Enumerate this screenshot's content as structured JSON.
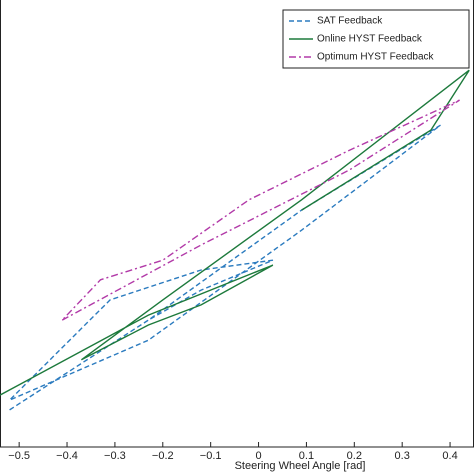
{
  "chart_data": {
    "type": "line",
    "x_label": "Steering Wheel Angle [rad]",
    "xlim": [
      -0.54,
      0.45
    ],
    "ylim": [
      0,
      100
    ],
    "xticks": [
      {
        "value": -0.5,
        "label": "−0.5"
      },
      {
        "value": -0.4,
        "label": "−0.4"
      },
      {
        "value": -0.3,
        "label": "−0.3"
      },
      {
        "value": -0.2,
        "label": "−0.2"
      },
      {
        "value": -0.1,
        "label": "−0.1"
      },
      0,
      0.1,
      0.2,
      0.3,
      0.4
    ],
    "legend": "upper right",
    "series": [
      {
        "name": "SAT Feedback",
        "color": "#2b7bbf",
        "dash": "5,3",
        "x": [
          -0.52,
          -0.23,
          0.09,
          0.38,
          0.09,
          -0.23,
          -0.52,
          -0.31,
          -0.12,
          0.03,
          -0.12,
          -0.23
        ],
        "values": [
          8.3,
          28.4,
          53,
          72,
          48.5,
          23.9,
          10.5,
          32.9,
          39.6,
          41.8,
          35.1,
          28.4
        ]
      },
      {
        "name": "Online HYST Feedback",
        "color": "#1d7a3c",
        "dash": "none",
        "x": [
          -0.54,
          -0.23,
          0.03,
          -0.12,
          -0.23,
          -0.37,
          -0.2,
          0.09,
          0.44,
          0.36,
          0.09
        ],
        "values": [
          11.6,
          29.5,
          40.7,
          31.8,
          27.3,
          19.5,
          32.9,
          55.3,
          84.3,
          70.9,
          53
        ]
      },
      {
        "name": "Optimum HYST Feedback",
        "color": "#b23aa8",
        "dash": "7,3,2,3",
        "x": [
          -0.41,
          -0.12,
          0.19,
          0.42,
          0.19,
          -0.02,
          -0.2,
          -0.33,
          -0.41
        ],
        "values": [
          28.4,
          45.2,
          62,
          77.6,
          66.4,
          55.3,
          41.8,
          37.4,
          28.4
        ]
      }
    ]
  }
}
